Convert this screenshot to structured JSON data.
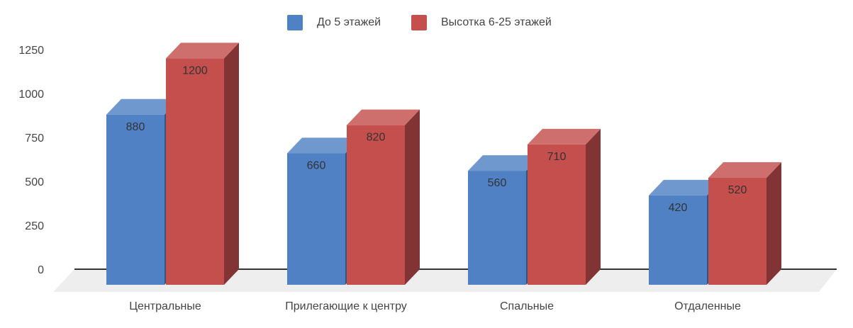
{
  "chart_data": {
    "type": "bar",
    "title": "",
    "xlabel": "",
    "ylabel": "",
    "categories": [
      "Центральные",
      "Прилегающие к центру",
      "Спальные",
      "Отдаленные"
    ],
    "series": [
      {
        "name": "До 5 этажей",
        "values": [
          880,
          660,
          560,
          420
        ],
        "color": "#4f81c4"
      },
      {
        "name": "Высотка 6-25 этажей",
        "values": [
          1200,
          820,
          710,
          520
        ],
        "color": "#c44f4d"
      }
    ],
    "ylim": [
      0,
      1250
    ],
    "yticks": [
      "0",
      "250",
      "500",
      "750",
      "1000",
      "1250"
    ],
    "legend_position": "top",
    "grid": false,
    "style": "3d"
  }
}
